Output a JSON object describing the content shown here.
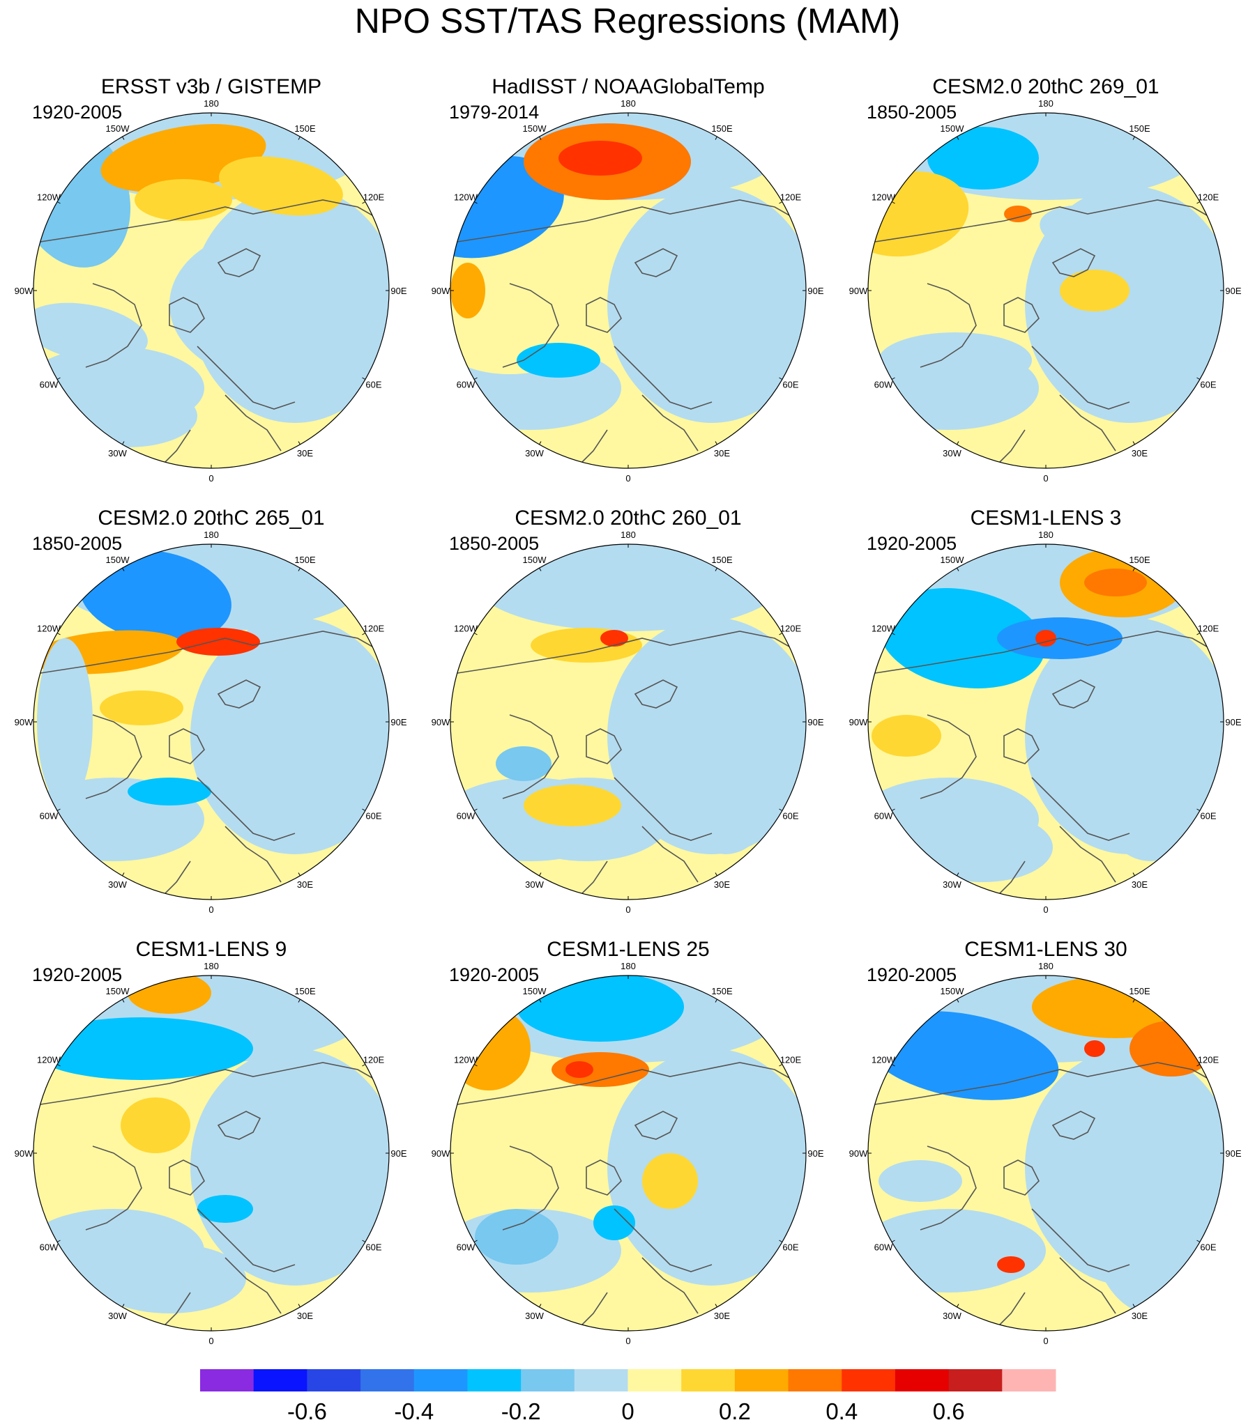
{
  "title": "NPO SST/TAS Regressions (MAM)",
  "panels": [
    {
      "title": "ERSST v3b / GISTEMP",
      "period": "1920-2005"
    },
    {
      "title": "HadISST / NOAAGlobalTemp",
      "period": "1979-2014"
    },
    {
      "title": "CESM2.0 20thC 269_01",
      "period": "1850-2005"
    },
    {
      "title": "CESM2.0 20thC 265_01",
      "period": "1850-2005"
    },
    {
      "title": "CESM2.0 20thC 260_01",
      "period": "1850-2005"
    },
    {
      "title": "CESM1-LENS 3",
      "period": "1920-2005"
    },
    {
      "title": "CESM1-LENS 9",
      "period": "1920-2005"
    },
    {
      "title": "CESM1-LENS 25",
      "period": "1920-2005"
    },
    {
      "title": "CESM1-LENS 30",
      "period": "1920-2005"
    }
  ],
  "longitude_labels": [
    "180",
    "150E",
    "120E",
    "90E",
    "60E",
    "30E",
    "0",
    "30W",
    "60W",
    "90W",
    "120W",
    "150W"
  ],
  "colorbar": {
    "colors": [
      "#8a2be2",
      "#0a14ff",
      "#2846e6",
      "#3273eb",
      "#1e96ff",
      "#00c3ff",
      "#78c8f0",
      "#b4dcf0",
      "#fff8a0",
      "#ffd732",
      "#ffaa00",
      "#ff7800",
      "#ff3200",
      "#e60000",
      "#c81e1e",
      "#ffb4b4"
    ],
    "labels": [
      "-0.6",
      "-0.4",
      "-0.2",
      "0",
      "0.2",
      "0.4",
      "0.6"
    ]
  }
}
